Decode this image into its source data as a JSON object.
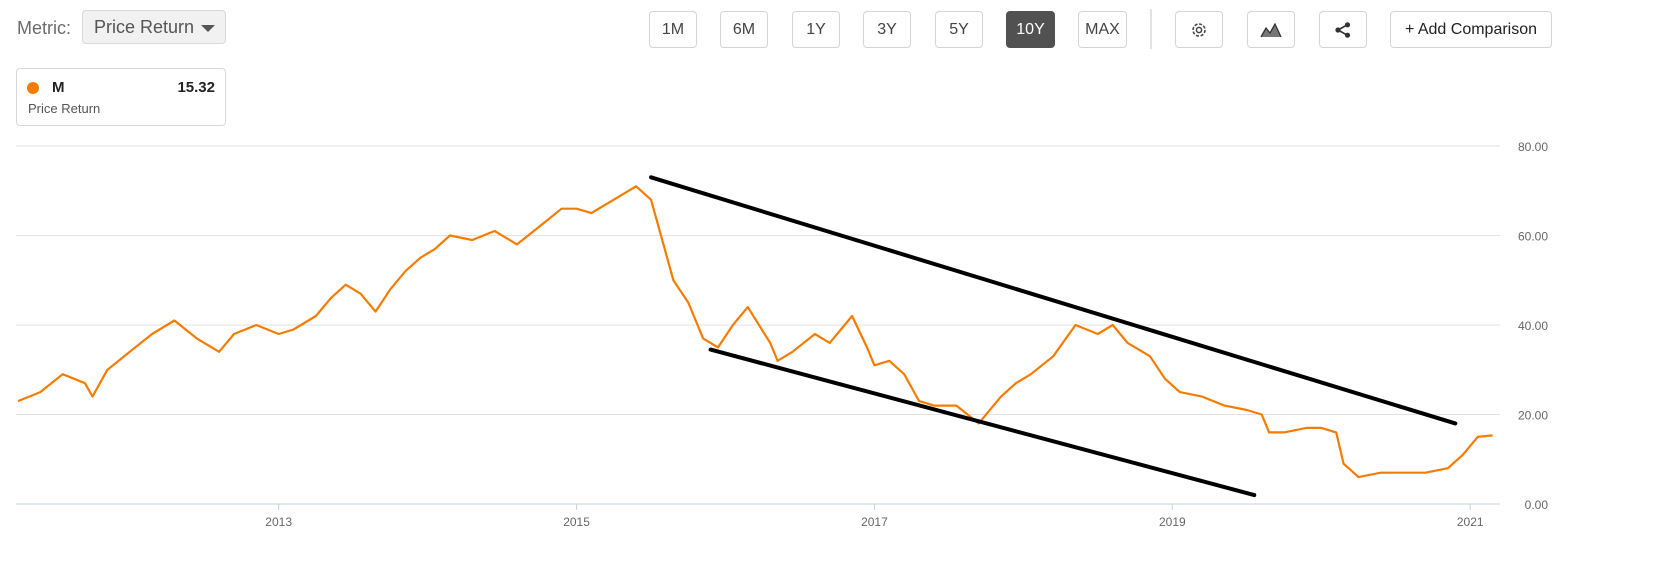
{
  "toolbar": {
    "metric_label": "Metric:",
    "metric_value": "Price Return",
    "ranges": [
      "1M",
      "6M",
      "1Y",
      "3Y",
      "5Y",
      "10Y",
      "MAX"
    ],
    "active_range": "10Y",
    "settings_icon": "gear-icon",
    "chart_type_icon": "mountain-chart-icon",
    "share_icon": "share-icon",
    "add_comparison": "+ Add Comparison"
  },
  "legend": {
    "ticker": "M",
    "value": "15.32",
    "subtitle": "Price Return",
    "color": "#f57c00"
  },
  "chart_data": {
    "type": "line",
    "title": "",
    "xlabel": "",
    "ylabel": "",
    "xlim": [
      2011.25,
      2021.2
    ],
    "ylim": [
      0,
      80
    ],
    "y_ticks": [
      "0.00",
      "20.00",
      "40.00",
      "60.00",
      "80.00"
    ],
    "y_tick_values": [
      0,
      20,
      40,
      60,
      80
    ],
    "x_ticks": [
      "2013",
      "2015",
      "2017",
      "2019",
      "2021"
    ],
    "x_tick_values": [
      2013,
      2015,
      2017,
      2019,
      2021
    ],
    "grid": true,
    "series": [
      {
        "name": "M",
        "color": "#f57c00",
        "x": [
          2011.25,
          2011.4,
          2011.55,
          2011.7,
          2011.75,
          2011.85,
          2012.0,
          2012.15,
          2012.3,
          2012.45,
          2012.6,
          2012.7,
          2012.85,
          2013.0,
          2013.1,
          2013.25,
          2013.35,
          2013.45,
          2013.55,
          2013.65,
          2013.75,
          2013.85,
          2013.95,
          2014.05,
          2014.15,
          2014.3,
          2014.45,
          2014.6,
          2014.75,
          2014.9,
          2015.0,
          2015.1,
          2015.25,
          2015.4,
          2015.5,
          2015.55,
          2015.65,
          2015.75,
          2015.85,
          2015.95,
          2016.05,
          2016.15,
          2016.3,
          2016.35,
          2016.45,
          2016.6,
          2016.7,
          2016.85,
          2016.95,
          2017.0,
          2017.1,
          2017.2,
          2017.3,
          2017.4,
          2017.55,
          2017.7,
          2017.85,
          2017.95,
          2018.05,
          2018.2,
          2018.35,
          2018.5,
          2018.6,
          2018.7,
          2018.85,
          2018.95,
          2019.05,
          2019.2,
          2019.35,
          2019.5,
          2019.6,
          2019.65,
          2019.75,
          2019.9,
          2020.0,
          2020.1,
          2020.15,
          2020.25,
          2020.4,
          2020.55,
          2020.7,
          2020.85,
          2020.95,
          2021.05,
          2021.15
        ],
        "y": [
          23,
          25,
          29,
          27,
          24,
          30,
          34,
          38,
          41,
          37,
          34,
          38,
          40,
          38,
          39,
          42,
          46,
          49,
          47,
          43,
          48,
          52,
          55,
          57,
          60,
          59,
          61,
          58,
          62,
          66,
          66,
          65,
          68,
          71,
          68,
          62,
          50,
          45,
          37,
          35,
          40,
          44,
          36,
          32,
          34,
          38,
          36,
          42,
          35,
          31,
          32,
          29,
          23,
          22,
          22,
          18,
          24,
          27,
          29,
          33,
          40,
          38,
          40,
          36,
          33,
          28,
          25,
          24,
          22,
          21,
          20,
          16,
          16,
          17,
          17,
          16,
          9,
          6,
          7,
          7,
          7,
          8,
          11,
          15,
          15.32
        ]
      }
    ],
    "annotations": [
      {
        "type": "trendline",
        "from": [
          2015.5,
          73
        ],
        "to": [
          2020.9,
          18
        ],
        "color": "#000000"
      },
      {
        "type": "trendline",
        "from": [
          2015.9,
          34.5
        ],
        "to": [
          2019.55,
          2
        ],
        "color": "#000000"
      }
    ]
  }
}
